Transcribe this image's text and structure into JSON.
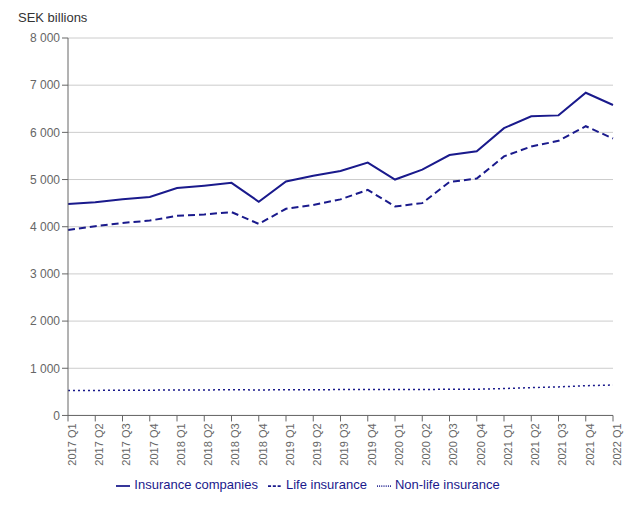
{
  "chart_data": {
    "type": "line",
    "ylabel": "SEK billions",
    "categories": [
      "2017 Q1",
      "2017 Q2",
      "2017 Q3",
      "2017 Q4",
      "2018 Q1",
      "2018 Q2",
      "2018 Q3",
      "2018 Q4",
      "2019 Q1",
      "2019 Q2",
      "2019 Q3",
      "2019 Q4",
      "2020 Q1",
      "2020 Q2",
      "2020 Q3",
      "2020 Q4",
      "2021 Q1",
      "2021 Q2",
      "2021 Q3",
      "2021 Q4",
      "2022 Q1"
    ],
    "series": [
      {
        "name": "Insurance companies",
        "color": "#1a1a8c",
        "line_style": "solid",
        "values": [
          4480,
          4520,
          4580,
          4630,
          4820,
          4870,
          4930,
          4530,
          4960,
          5080,
          5180,
          5360,
          5000,
          5210,
          5520,
          5600,
          6090,
          6340,
          6360,
          6840,
          6580
        ]
      },
      {
        "name": "Life insurance",
        "color": "#1a1a8c",
        "line_style": "dashed",
        "values": [
          3930,
          4010,
          4080,
          4130,
          4230,
          4260,
          4310,
          4060,
          4380,
          4460,
          4580,
          4780,
          4430,
          4500,
          4950,
          5020,
          5490,
          5700,
          5820,
          6130,
          5870
        ]
      },
      {
        "name": "Non-life insurance",
        "color": "#1a1a8c",
        "line_style": "dotted",
        "values": [
          530,
          530,
          535,
          535,
          540,
          540,
          545,
          540,
          545,
          545,
          548,
          550,
          550,
          550,
          555,
          555,
          570,
          590,
          605,
          630,
          645
        ]
      }
    ],
    "ylim": [
      0,
      8000
    ],
    "yticks": [
      0,
      {
        "value": 1000,
        "label": "1 000"
      },
      {
        "value": 2000,
        "label": "2 000"
      },
      {
        "value": 3000,
        "label": "3 000"
      },
      {
        "value": 4000,
        "label": "4 000"
      },
      {
        "value": 5000,
        "label": "5 000"
      },
      {
        "value": 6000,
        "label": "6 000"
      },
      {
        "value": 7000,
        "label": "7 000"
      },
      {
        "value": 8000,
        "label": "8 000"
      }
    ],
    "grid": true,
    "legend": "bottom"
  }
}
